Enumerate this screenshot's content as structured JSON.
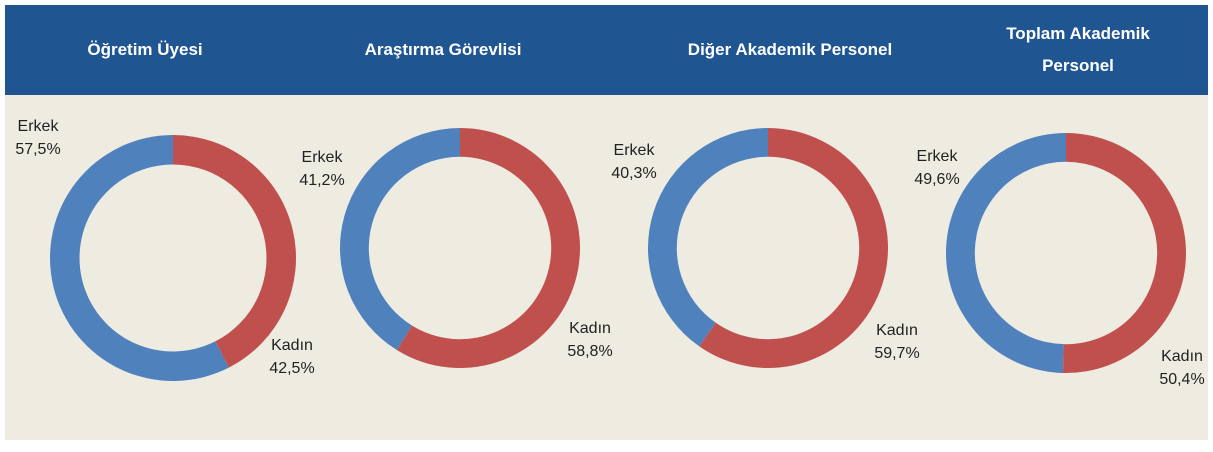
{
  "chart_data": [
    {
      "type": "pie",
      "title": "Öğretim Üyesi",
      "categories": [
        "Erkek",
        "Kadın"
      ],
      "values": [
        57.5,
        42.5
      ],
      "value_labels": [
        "57,5%",
        "42,5%"
      ],
      "colors": [
        "#4f81bd",
        "#c0504d"
      ]
    },
    {
      "type": "pie",
      "title": "Araştırma Görevlisi",
      "categories": [
        "Erkek",
        "Kadın"
      ],
      "values": [
        41.2,
        58.8
      ],
      "value_labels": [
        "41,2%",
        "58,8%"
      ],
      "colors": [
        "#4f81bd",
        "#c0504d"
      ]
    },
    {
      "type": "pie",
      "title": "Diğer Akademik Personel",
      "categories": [
        "Erkek",
        "Kadın"
      ],
      "values": [
        40.3,
        59.7
      ],
      "value_labels": [
        "40,3%",
        "59,7%"
      ],
      "colors": [
        "#4f81bd",
        "#c0504d"
      ]
    },
    {
      "type": "pie",
      "title": "Toplam Akademik Personel",
      "categories": [
        "Erkek",
        "Kadın"
      ],
      "values": [
        49.6,
        50.4
      ],
      "value_labels": [
        "49,6%",
        "50,4%"
      ],
      "colors": [
        "#4f81bd",
        "#c0504d"
      ]
    }
  ]
}
